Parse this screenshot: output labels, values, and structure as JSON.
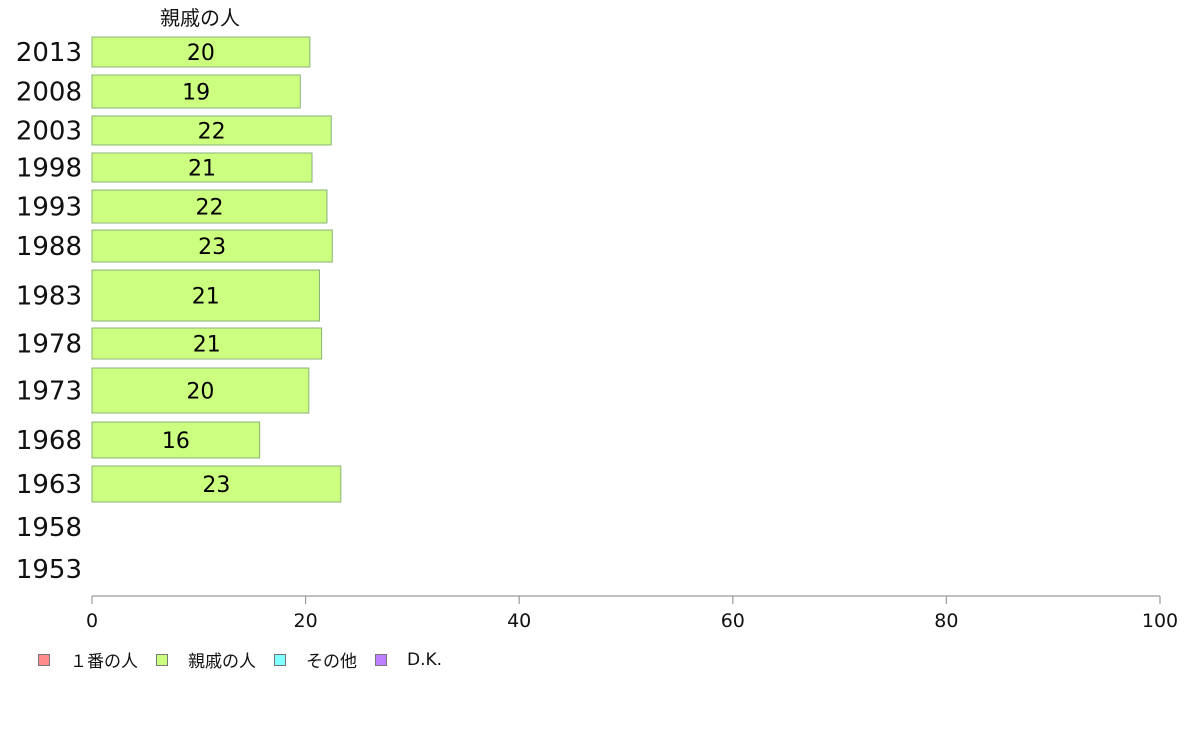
{
  "chart_data": {
    "type": "bar",
    "orientation": "horizontal",
    "series_title": "親戚の人",
    "categories": [
      "2013",
      "2008",
      "2003",
      "1998",
      "1993",
      "1988",
      "1983",
      "1978",
      "1973",
      "1968",
      "1963",
      "1958",
      "1953"
    ],
    "series": [
      {
        "name": "親戚の人",
        "color": "#ccff80",
        "values": [
          20.4,
          19.5,
          22.4,
          20.6,
          22.0,
          22.5,
          21.3,
          21.5,
          20.3,
          15.7,
          23.3,
          null,
          null
        ],
        "labels": [
          "20",
          "19",
          "22",
          "21",
          "22",
          "23",
          "21",
          "21",
          "20",
          "16",
          "23",
          "",
          ""
        ]
      }
    ],
    "xlim": [
      0,
      100
    ],
    "xticks": [
      0,
      20,
      40,
      60,
      80,
      100
    ],
    "legend": [
      {
        "label": "１番の人",
        "color": "#ff8c8c"
      },
      {
        "label": "親戚の人",
        "color": "#ccff80"
      },
      {
        "label": "その他",
        "color": "#80ffff"
      },
      {
        "label": "D.K.",
        "color": "#bf80ff"
      }
    ],
    "legend_position": "bottom-left",
    "grid": false
  }
}
